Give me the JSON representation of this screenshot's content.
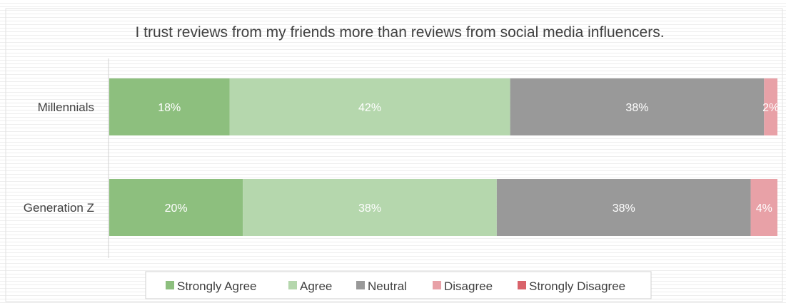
{
  "chart_data": {
    "type": "bar",
    "orientation": "horizontal",
    "stacked": true,
    "title": "I trust reviews from my friends more than reviews from social media influencers.",
    "categories": [
      "Millennials",
      "Generation Z"
    ],
    "xlim": [
      0,
      100
    ],
    "legend_placement": "bottom",
    "series": [
      {
        "name": "Strongly Agree",
        "color": "#8dbf7e",
        "values": [
          18,
          20
        ],
        "labels": [
          "18%",
          "20%"
        ]
      },
      {
        "name": "Agree",
        "color": "#b5d7ad",
        "values": [
          42,
          38
        ],
        "labels": [
          "42%",
          "38%"
        ]
      },
      {
        "name": "Neutral",
        "color": "#999999",
        "values": [
          38,
          38
        ],
        "labels": [
          "38%",
          "38%"
        ]
      },
      {
        "name": "Disagree",
        "color": "#e8a1a7",
        "values": [
          2,
          4
        ],
        "labels": [
          "2%",
          "4%"
        ]
      },
      {
        "name": "Strongly Disagree",
        "color": "#d9636b",
        "values": [
          0,
          0
        ],
        "labels": [
          "",
          ""
        ]
      }
    ]
  }
}
